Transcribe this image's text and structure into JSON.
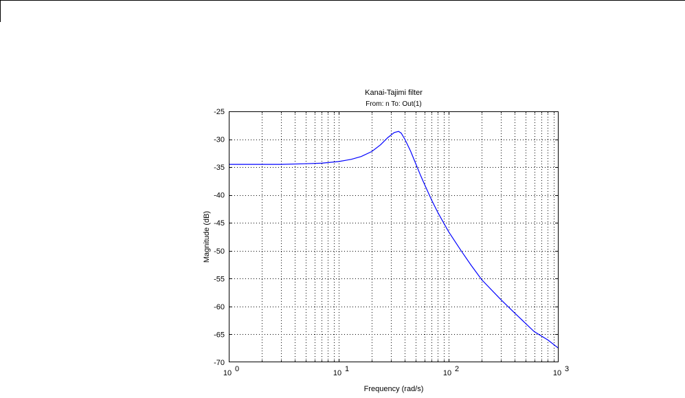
{
  "chart_data": {
    "type": "line",
    "title": "Kanai-Tajimi filter",
    "subtitle": "From: n  To: Out(1)",
    "xlabel": "Frequency  (rad/s)",
    "ylabel": "Magnitude (dB)",
    "xscale": "log",
    "xlim": [
      1,
      1000
    ],
    "ylim": [
      -70,
      -25
    ],
    "grid": true,
    "colors": {
      "series": "#0000ff",
      "grid": "#000000"
    },
    "x_ticks": [
      {
        "base": "10",
        "exp": "0"
      },
      {
        "base": "10",
        "exp": "1"
      },
      {
        "base": "10",
        "exp": "2"
      },
      {
        "base": "10",
        "exp": "3"
      }
    ],
    "y_ticks": [
      "-25",
      "-30",
      "-35",
      "-40",
      "-45",
      "-50",
      "-55",
      "-60",
      "-65",
      "-70"
    ],
    "series": [
      {
        "x": [
          1,
          2,
          3,
          5,
          7,
          10,
          13,
          16,
          20,
          24,
          28,
          32,
          35,
          37,
          40,
          45,
          50,
          55,
          60,
          70,
          80,
          100,
          130,
          160,
          200,
          300,
          400,
          600,
          800,
          1000
        ],
        "y": [
          -34.5,
          -34.5,
          -34.5,
          -34.4,
          -34.3,
          -34.0,
          -33.6,
          -33.1,
          -32.2,
          -31.0,
          -29.7,
          -28.8,
          -28.6,
          -28.9,
          -30.0,
          -32.1,
          -34.3,
          -36.3,
          -38.0,
          -40.9,
          -43.2,
          -46.6,
          -50.0,
          -52.6,
          -55.2,
          -58.8,
          -61.2,
          -64.5,
          -66.0,
          -67.5
        ]
      }
    ]
  }
}
